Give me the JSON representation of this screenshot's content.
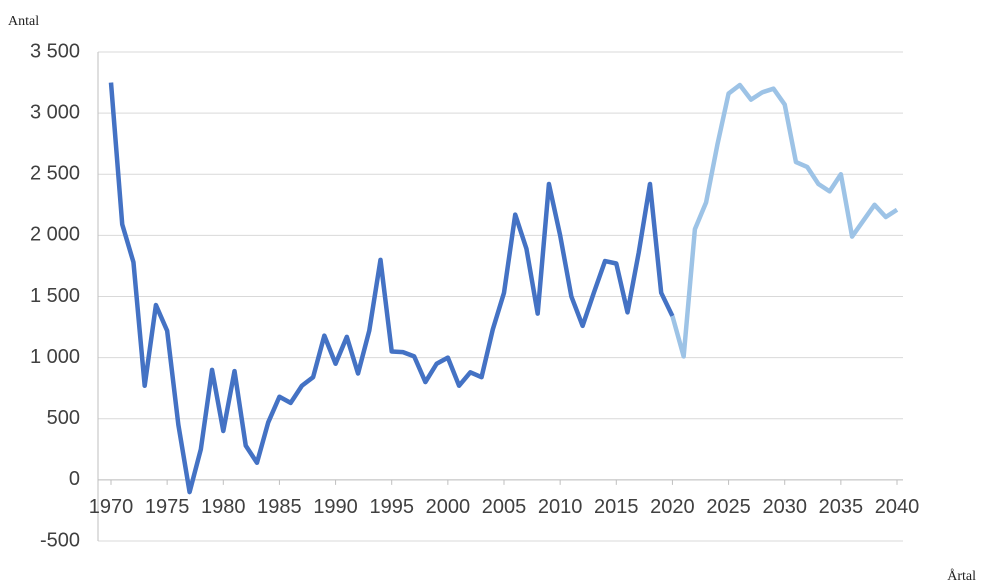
{
  "chart_data": {
    "type": "line",
    "y_label": "Antal",
    "x_label": "Årtal",
    "x": [
      1970,
      1971,
      1972,
      1973,
      1974,
      1975,
      1976,
      1977,
      1978,
      1979,
      1980,
      1981,
      1982,
      1983,
      1984,
      1985,
      1986,
      1987,
      1988,
      1989,
      1990,
      1991,
      1992,
      1993,
      1994,
      1995,
      1996,
      1997,
      1998,
      1999,
      2000,
      2001,
      2002,
      2003,
      2004,
      2005,
      2006,
      2007,
      2008,
      2009,
      2010,
      2011,
      2012,
      2013,
      2014,
      2015,
      2016,
      2017,
      2018,
      2019,
      2020,
      2021,
      2022,
      2023,
      2024,
      2025,
      2026,
      2027,
      2028,
      2029,
      2030,
      2031,
      2032,
      2033,
      2034,
      2035,
      2036,
      2037,
      2038,
      2039,
      2040
    ],
    "series": [
      {
        "color": "#4472c4",
        "values": [
          3250,
          2090,
          1780,
          770,
          1430,
          1220,
          450,
          -100,
          250,
          900,
          400,
          890,
          280,
          140,
          470,
          680,
          630,
          770,
          840,
          1180,
          950,
          1170,
          870,
          1220,
          1800,
          1050,
          1045,
          1010,
          800,
          950,
          1000,
          770,
          880,
          840,
          1230,
          1530,
          2170,
          1890,
          1360,
          2420,
          2000,
          1500,
          1260,
          1530,
          1790,
          1770,
          1370,
          1860,
          2420,
          1530,
          1340,
          null,
          null,
          null,
          null,
          null,
          null,
          null,
          null,
          null,
          null,
          null,
          null,
          null,
          null,
          null,
          null,
          null,
          null,
          null,
          null
        ]
      },
      {
        "color": "#9dc3e6",
        "values": [
          null,
          null,
          null,
          null,
          null,
          null,
          null,
          null,
          null,
          null,
          null,
          null,
          null,
          null,
          null,
          null,
          null,
          null,
          null,
          null,
          null,
          null,
          null,
          null,
          null,
          null,
          null,
          null,
          null,
          null,
          null,
          null,
          null,
          null,
          null,
          null,
          null,
          null,
          null,
          null,
          null,
          null,
          null,
          null,
          null,
          null,
          null,
          null,
          null,
          null,
          1340,
          1010,
          2050,
          2270,
          2740,
          3160,
          3230,
          3110,
          3170,
          3200,
          3070,
          2600,
          2560,
          2420,
          2360,
          2500,
          1990,
          2120,
          2250,
          2150,
          2210
        ]
      }
    ],
    "xlim": [
      1970,
      2040
    ],
    "xticks": [
      1970,
      1975,
      1980,
      1985,
      1990,
      1995,
      2000,
      2005,
      2010,
      2015,
      2020,
      2025,
      2030,
      2035,
      2040
    ],
    "ylim": [
      -500,
      3500
    ],
    "yticks": [
      {
        "value": 3500,
        "label": "3 500"
      },
      {
        "value": 3000,
        "label": "3 000"
      },
      {
        "value": 2500,
        "label": "2 500"
      },
      {
        "value": 2000,
        "label": "2 000"
      },
      {
        "value": 1500,
        "label": "1 500"
      },
      {
        "value": 1000,
        "label": "1 000"
      },
      500,
      0,
      -500
    ],
    "grid": true
  }
}
